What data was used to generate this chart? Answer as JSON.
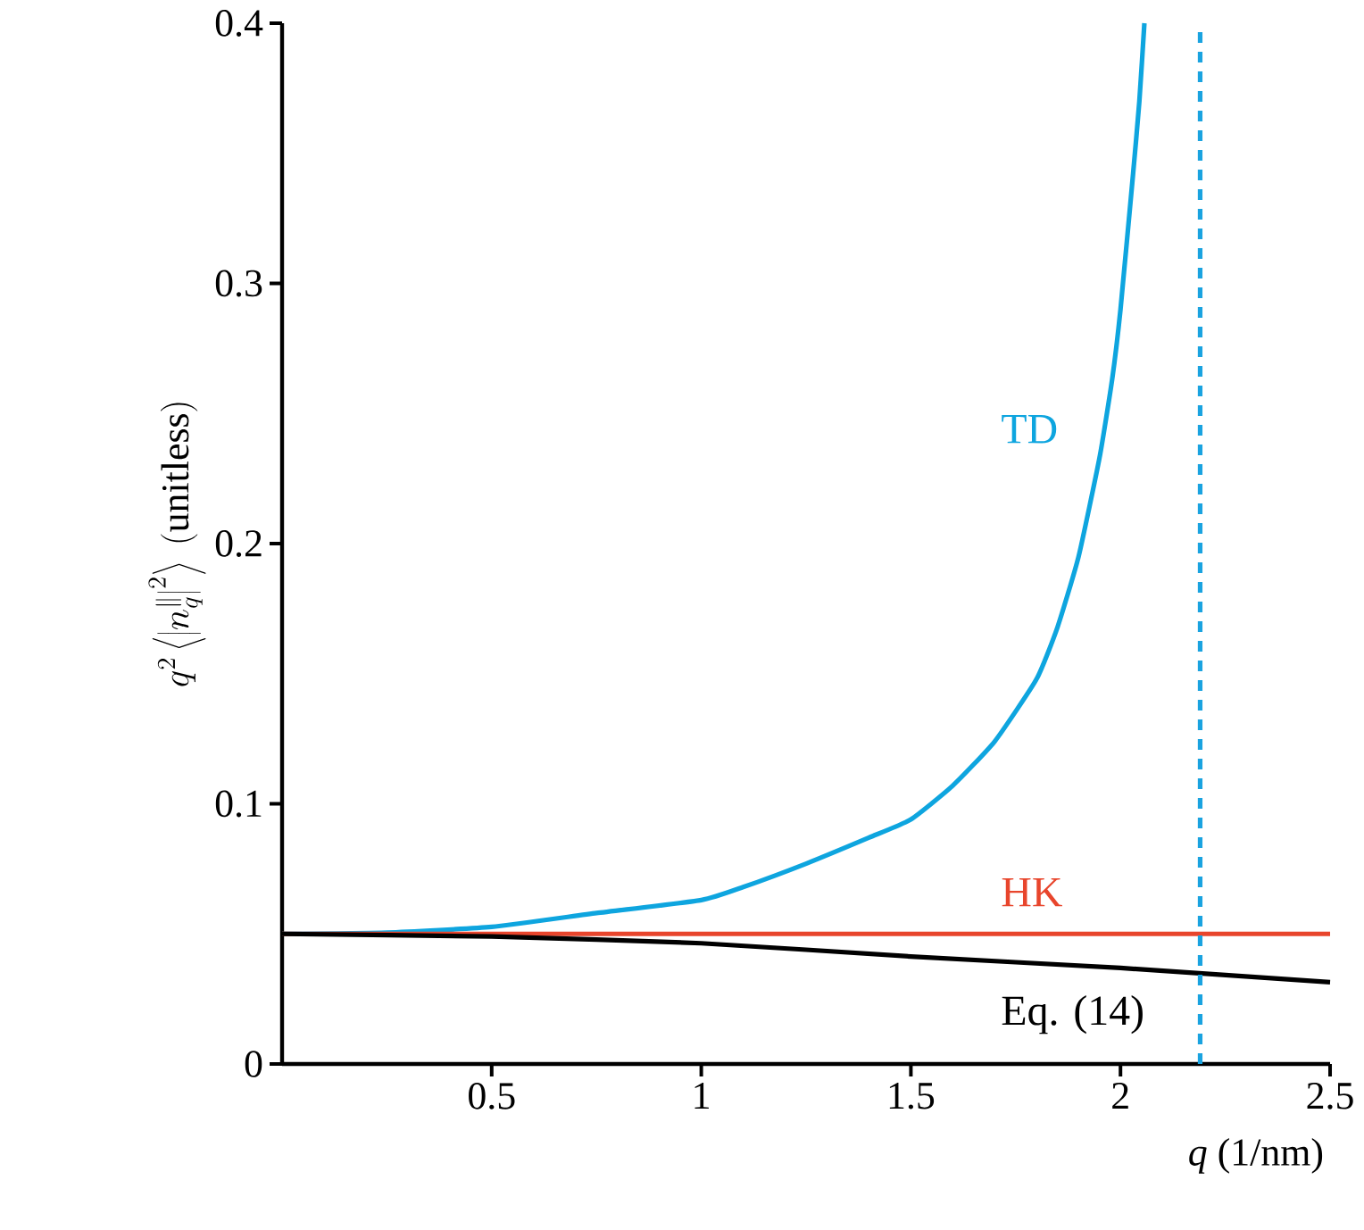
{
  "chart_data": {
    "type": "line",
    "xlabel": "*q* (1/nm)",
    "ylabel": "q^2\\left\\langle\\left|n_q^{\\parallel}\\right|^2\\right\\rangle\\ \\mathrm{(unitless)}",
    "xlim": [
      0,
      2.5
    ],
    "ylim": [
      0,
      0.4
    ],
    "xticks": [
      0.5,
      1,
      1.5,
      2,
      2.5
    ],
    "yticks": [
      0,
      0.1,
      0.2,
      0.3,
      0.4
    ],
    "grid": false,
    "marker": "none",
    "line_style": "solid",
    "series": [
      {
        "name": "TD",
        "color": "#0ea5df",
        "x": [
          0,
          0.25,
          0.5,
          0.75,
          1,
          1.1,
          1.25,
          1.4,
          1.5,
          1.6,
          1.7,
          1.8,
          1.85,
          1.9,
          1.95,
          1.98,
          2.0,
          2.03,
          2.045,
          2.057
        ],
        "values": [
          0.05,
          0.0505,
          0.0527,
          0.058,
          0.063,
          0.068,
          0.077,
          0.087,
          0.094,
          0.107,
          0.124,
          0.148,
          0.168,
          0.195,
          0.233,
          0.263,
          0.29,
          0.342,
          0.37,
          0.4
        ]
      },
      {
        "name": "HK",
        "color": "#e8452c",
        "x": [
          0,
          2.5
        ],
        "values": [
          0.05,
          0.05
        ]
      },
      {
        "name": "Eq. (14)",
        "color": "#000000",
        "x": [
          0,
          0.5,
          1,
          1.5,
          2,
          2.5
        ],
        "values": [
          0.05,
          0.049,
          0.0464,
          0.0413,
          0.0369,
          0.0314
        ]
      }
    ],
    "ref_lines": [
      {
        "axis": "x",
        "value": 2.19,
        "color": "#1aa3e0",
        "line_style": "dashed"
      }
    ]
  }
}
